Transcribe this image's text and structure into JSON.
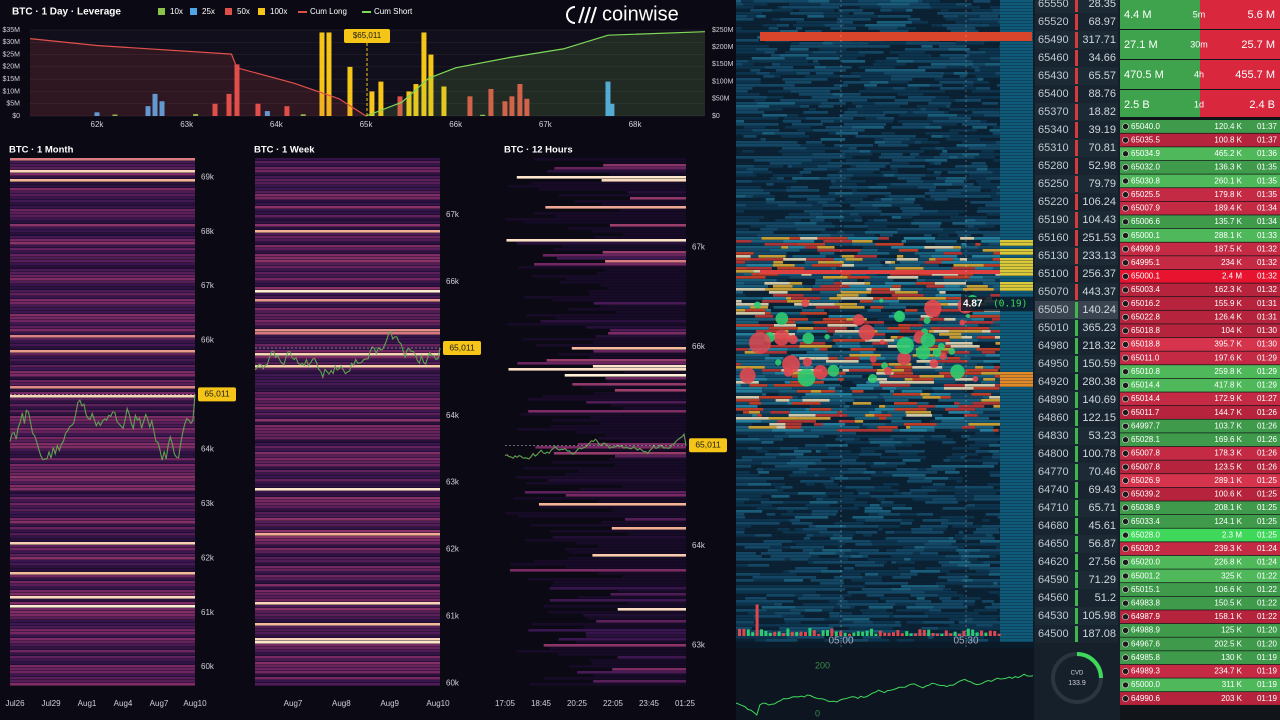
{
  "chart_data": [
    {
      "type": "bar",
      "title": "BTC · 1 Day · Leverage",
      "xlim": [
        61253,
        68780
      ],
      "xticks": [
        {
          "value": 62000,
          "label": "62k"
        },
        {
          "value": 63000,
          "label": "63k"
        },
        {
          "value": 64000,
          "label": "64k"
        },
        {
          "value": 65000,
          "label": "65k"
        },
        {
          "value": 66000,
          "label": "66k"
        },
        {
          "value": 67000,
          "label": "67k"
        },
        {
          "value": 68000,
          "label": "68k"
        }
      ],
      "ylim": [
        0,
        35000000
      ],
      "yticks": [
        {
          "value": 0,
          "label": "$0"
        },
        {
          "value": 5000000,
          "label": "$5M"
        },
        {
          "value": 10000000,
          "label": "$10M"
        },
        {
          "value": 15000000,
          "label": "$15M"
        },
        {
          "value": 20000000,
          "label": "$20M"
        },
        {
          "value": 25000000,
          "label": "$25M"
        },
        {
          "value": 30000000,
          "label": "$30M"
        },
        {
          "value": 35000000,
          "label": "$35M"
        }
      ],
      "y2lim": [
        0,
        250000000
      ],
      "y2ticks": [
        {
          "value": 0,
          "label": "$0"
        },
        {
          "value": 50000000,
          "label": "$50M"
        },
        {
          "value": 100000000,
          "label": "$100M"
        },
        {
          "value": 150000000,
          "label": "$150M"
        },
        {
          "value": 200000000,
          "label": "$200M"
        },
        {
          "value": 250000000,
          "label": "$250M"
        }
      ],
      "annotation": {
        "value": 65011,
        "label": "$65,011"
      },
      "series": [
        {
          "name": "10x",
          "color": "#8bc34a",
          "x": [
            62200,
            63100,
            64300,
            66300
          ],
          "values": [
            600000,
            800000,
            700000,
            500000
          ]
        },
        {
          "name": "25x",
          "color": "#4ea5e8",
          "x": [
            62000,
            62569,
            62647,
            62725,
            63900,
            67698,
            67742
          ],
          "values": [
            1500000,
            4000000,
            9000000,
            6000000,
            2000000,
            14000000,
            5000000
          ]
        },
        {
          "name": "50x",
          "color": "#e0504a",
          "x": [
            63316,
            63472,
            63561,
            63795,
            64118,
            65379,
            66159,
            66393,
            66549,
            66627,
            66716,
            66794
          ],
          "values": [
            5000000,
            9000000,
            21000000,
            5000000,
            4000000,
            8000000,
            8000000,
            11000000,
            6000000,
            8000000,
            13000000,
            7000000
          ]
        },
        {
          "name": "100x",
          "color": "#f5c518",
          "x": [
            64509,
            64587,
            64821,
            65066,
            65166,
            65479,
            65557,
            65646,
            65724,
            65869
          ],
          "values": [
            34000000,
            34000000,
            20000000,
            10000000,
            14000000,
            10000000,
            13000000,
            34000000,
            25000000,
            12000000
          ]
        },
        {
          "name": "Cum Long",
          "type": "line",
          "axis": "y2",
          "color": "#e0504a",
          "x": [
            61253,
            62000,
            63500,
            63560,
            64200,
            64700,
            65000
          ],
          "values": [
            225000000,
            205000000,
            180000000,
            140000000,
            95000000,
            50000000,
            0
          ]
        },
        {
          "name": "Cum Short",
          "type": "line",
          "axis": "y2",
          "color": "#7ed957",
          "x": [
            65000,
            65400,
            65700,
            66000,
            66600,
            67200,
            67700,
            68780
          ],
          "values": [
            0,
            40000000,
            110000000,
            140000000,
            170000000,
            195000000,
            235000000,
            245000000
          ]
        }
      ]
    },
    {
      "type": "heatmap",
      "title": "BTC · 1 Month",
      "ylim": [
        59580,
        69500
      ],
      "yticks": [
        {
          "value": 69000,
          "label": "69k"
        },
        {
          "value": 68000,
          "label": "68k"
        },
        {
          "value": 67000,
          "label": "67k"
        },
        {
          "value": 66000,
          "label": "66k"
        },
        {
          "value": 64000,
          "label": "64k"
        },
        {
          "value": 63000,
          "label": "63k"
        },
        {
          "value": 62000,
          "label": "62k"
        },
        {
          "value": 61000,
          "label": "61k"
        },
        {
          "value": 60000,
          "label": "60k"
        }
      ],
      "categories": [
        "Jul26",
        "Jul29",
        "Aug1",
        "Aug4",
        "Aug7",
        "Aug10"
      ],
      "last_price": {
        "value": 65011,
        "label": "65,011"
      }
    },
    {
      "type": "heatmap",
      "title": "BTC · 1 Week",
      "ylim": [
        59900,
        67970
      ],
      "yticks": [
        {
          "value": 67000,
          "label": "67k"
        },
        {
          "value": 66000,
          "label": "66k"
        },
        {
          "value": 64000,
          "label": "64k"
        },
        {
          "value": 63000,
          "label": "63k"
        },
        {
          "value": 62000,
          "label": "62k"
        },
        {
          "value": 61000,
          "label": "61k"
        },
        {
          "value": 60000,
          "label": "60k"
        }
      ],
      "categories": [
        "Aug7",
        "Aug8",
        "Aug9",
        "Aug10"
      ],
      "last_price": {
        "value": 65011,
        "label": "65,011"
      }
    },
    {
      "type": "heatmap",
      "title": "BTC · 12 Hours",
      "ylim": [
        62550,
        67980
      ],
      "yticks": [
        {
          "value": 67000,
          "label": "67k"
        },
        {
          "value": 66000,
          "label": "66k"
        },
        {
          "value": 64000,
          "label": "64k"
        },
        {
          "value": 63000,
          "label": "63k"
        }
      ],
      "categories": [
        "17:05",
        "18:45",
        "20:25",
        "22:05",
        "23:45",
        "01:25"
      ],
      "last_price": {
        "value": 65011,
        "label": "65,011"
      }
    }
  ],
  "logo": "coinwise",
  "order_book": {
    "times": [
      "05:00",
      "05:30"
    ],
    "tooltip": "4.87",
    "tooltip_change": "(0.19)",
    "ladder": [
      {
        "price": "65550",
        "size": "28.35"
      },
      {
        "price": "65520",
        "size": "68.97"
      },
      {
        "price": "65490",
        "size": "317.71"
      },
      {
        "price": "65460",
        "size": "34.66"
      },
      {
        "price": "65430",
        "size": "65.57"
      },
      {
        "price": "65400",
        "size": "88.76"
      },
      {
        "price": "65370",
        "size": "18.82"
      },
      {
        "price": "65340",
        "size": "39.19"
      },
      {
        "price": "65310",
        "size": "70.81"
      },
      {
        "price": "65280",
        "size": "52.98"
      },
      {
        "price": "65250",
        "size": "79.79"
      },
      {
        "price": "65220",
        "size": "106.24"
      },
      {
        "price": "65190",
        "size": "104.43"
      },
      {
        "price": "65160",
        "size": "251.53"
      },
      {
        "price": "65130",
        "size": "233.13"
      },
      {
        "price": "65100",
        "size": "256.37"
      },
      {
        "price": "65070",
        "size": "443.37"
      },
      {
        "price": "65050",
        "size": "140.24"
      },
      {
        "price": "65010",
        "size": "365.23"
      },
      {
        "price": "64980",
        "size": "218.32"
      },
      {
        "price": "64950",
        "size": "150.59"
      },
      {
        "price": "64920",
        "size": "280.38"
      },
      {
        "price": "64890",
        "size": "140.69"
      },
      {
        "price": "64860",
        "size": "122.15"
      },
      {
        "price": "64830",
        "size": "53.23"
      },
      {
        "price": "64800",
        "size": "100.78"
      },
      {
        "price": "64770",
        "size": "70.46"
      },
      {
        "price": "64740",
        "size": "69.43"
      },
      {
        "price": "64710",
        "size": "65.71"
      },
      {
        "price": "64680",
        "size": "45.61"
      },
      {
        "price": "64650",
        "size": "56.87"
      },
      {
        "price": "64620",
        "size": "27.56"
      },
      {
        "price": "64590",
        "size": "71.29"
      },
      {
        "price": "64560",
        "size": "51.2"
      },
      {
        "price": "64530",
        "size": "105.98"
      },
      {
        "price": "64500",
        "size": "187.08"
      }
    ]
  },
  "cvd": {
    "label": "CVD",
    "value": "133.9",
    "axis": [
      "200",
      "0"
    ]
  },
  "stats": [
    {
      "buy": "4.4 M",
      "period": "5m",
      "sell": "5.6 M"
    },
    {
      "buy": "27.1 M",
      "period": "30m",
      "sell": "25.7 M"
    },
    {
      "buy": "470.5 M",
      "period": "4h",
      "sell": "455.7 M"
    },
    {
      "buy": "2.5 B",
      "period": "1d",
      "sell": "2.4 B"
    }
  ],
  "trades": [
    {
      "price": "65040.0",
      "size": "120.4 K",
      "time": "01:37",
      "color": "#3f9b4b"
    },
    {
      "price": "65035.5",
      "size": "100.8 K",
      "time": "01:37",
      "color": "#b5243c"
    },
    {
      "price": "65034.9",
      "size": "465.2 K",
      "time": "01:36",
      "color": "#4fb85a"
    },
    {
      "price": "65032.0",
      "size": "136.3 K",
      "time": "01:35",
      "color": "#3f9b4b"
    },
    {
      "price": "65030.8",
      "size": "260.1 K",
      "time": "01:35",
      "color": "#4fb85a"
    },
    {
      "price": "65025.5",
      "size": "179.8 K",
      "time": "01:35",
      "color": "#c42a44"
    },
    {
      "price": "65007.9",
      "size": "189.4 K",
      "time": "01:34",
      "color": "#c42a44"
    },
    {
      "price": "65006.6",
      "size": "135.7 K",
      "time": "01:34",
      "color": "#3f9b4b"
    },
    {
      "price": "65000.1",
      "size": "288.1 K",
      "time": "01:33",
      "color": "#4fb85a"
    },
    {
      "price": "64999.9",
      "size": "187.5 K",
      "time": "01:32",
      "color": "#c42a44"
    },
    {
      "price": "64995.1",
      "size": "234 K",
      "time": "01:32",
      "color": "#c42a44"
    },
    {
      "price": "65000.1",
      "size": "2.4 M",
      "time": "01:32",
      "color": "#e8132f"
    },
    {
      "price": "65003.4",
      "size": "162.3 K",
      "time": "01:32",
      "color": "#b5243c"
    },
    {
      "price": "65016.2",
      "size": "155.9 K",
      "time": "01:31",
      "color": "#b5243c"
    },
    {
      "price": "65022.8",
      "size": "126.4 K",
      "time": "01:31",
      "color": "#b5243c"
    },
    {
      "price": "65018.8",
      "size": "104 K",
      "time": "01:30",
      "color": "#b5243c"
    },
    {
      "price": "65018.8",
      "size": "395.7 K",
      "time": "01:30",
      "color": "#d6334c"
    },
    {
      "price": "65011.0",
      "size": "197.6 K",
      "time": "01:29",
      "color": "#c42a44"
    },
    {
      "price": "65010.8",
      "size": "259.8 K",
      "time": "01:29",
      "color": "#4fb85a"
    },
    {
      "price": "65014.4",
      "size": "417.8 K",
      "time": "01:29",
      "color": "#4fb85a"
    },
    {
      "price": "65014.4",
      "size": "172.9 K",
      "time": "01:27",
      "color": "#c42a44"
    },
    {
      "price": "65011.7",
      "size": "144.7 K",
      "time": "01:26",
      "color": "#b5243c"
    },
    {
      "price": "64997.7",
      "size": "103.7 K",
      "time": "01:26",
      "color": "#3f9b4b"
    },
    {
      "price": "65028.1",
      "size": "169.6 K",
      "time": "01:26",
      "color": "#3f9b4b"
    },
    {
      "price": "65007.8",
      "size": "178.3 K",
      "time": "01:26",
      "color": "#c42a44"
    },
    {
      "price": "65007.8",
      "size": "123.5 K",
      "time": "01:26",
      "color": "#b5243c"
    },
    {
      "price": "65026.9",
      "size": "289.1 K",
      "time": "01:25",
      "color": "#d6334c"
    },
    {
      "price": "65039.2",
      "size": "100.6 K",
      "time": "01:25",
      "color": "#b5243c"
    },
    {
      "price": "65038.9",
      "size": "208.1 K",
      "time": "01:25",
      "color": "#3f9b4b"
    },
    {
      "price": "65033.4",
      "size": "124.1 K",
      "time": "01:25",
      "color": "#3f9b4b"
    },
    {
      "price": "65028.0",
      "size": "2.3 M",
      "time": "01:25",
      "color": "#3fd85a"
    },
    {
      "price": "65020.2",
      "size": "239.3 K",
      "time": "01:24",
      "color": "#c42a44"
    },
    {
      "price": "65020.0",
      "size": "226.8 K",
      "time": "01:24",
      "color": "#4fb85a"
    },
    {
      "price": "65001.2",
      "size": "325 K",
      "time": "01:22",
      "color": "#4fb85a"
    },
    {
      "price": "65015.1",
      "size": "106.6 K",
      "time": "01:22",
      "color": "#3f9b4b"
    },
    {
      "price": "64983.8",
      "size": "150.5 K",
      "time": "01:22",
      "color": "#3f9b4b"
    },
    {
      "price": "64987.9",
      "size": "158.1 K",
      "time": "01:22",
      "color": "#b5243c"
    },
    {
      "price": "64988.9",
      "size": "125 K",
      "time": "01:20",
      "color": "#3f9b4b"
    },
    {
      "price": "64967.6",
      "size": "202.5 K",
      "time": "01:20",
      "color": "#3f9b4b"
    },
    {
      "price": "64985.8",
      "size": "130 K",
      "time": "01:19",
      "color": "#3f9b4b"
    },
    {
      "price": "64989.3",
      "size": "234.7 K",
      "time": "01:19",
      "color": "#c42a44"
    },
    {
      "price": "65000.0",
      "size": "311 K",
      "time": "01:19",
      "color": "#4fb85a"
    },
    {
      "price": "64990.6",
      "size": "203 K",
      "time": "01:19",
      "color": "#b5243c"
    }
  ]
}
